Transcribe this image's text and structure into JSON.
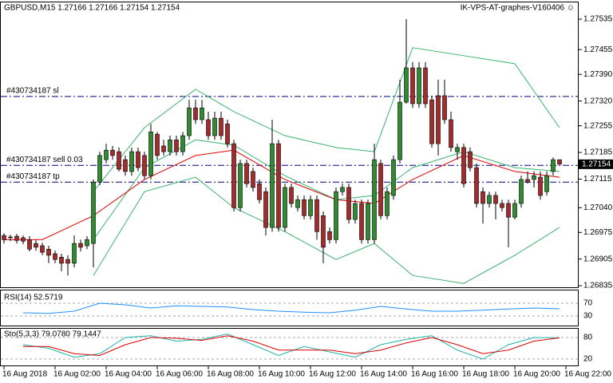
{
  "header": {
    "left": "GBPUSD,M15  1.27166 1.27166 1.27154 1.27154",
    "right": "IK-VPS-AT-graphes-V160406 ☺"
  },
  "chart_data": [
    {
      "type": "candlestick",
      "ylim": [
        1.26831,
        1.27579
      ],
      "yticks": [
        1.27535,
        1.27455,
        {
          "value": 1.2739,
          "label": "1.27390"
        },
        {
          "value": 1.2732,
          "label": "1.27320"
        },
        1.27255,
        1.27185,
        1.27115,
        {
          "value": 1.2704,
          "label": "1.27040"
        },
        1.26975,
        1.26905,
        1.26835
      ],
      "up_color": "#2e8b2e",
      "down_color": "#a52a2a",
      "ohlc": [
        [
          1.26967,
          1.26973,
          1.26946,
          1.26956
        ],
        [
          1.26963,
          1.26969,
          1.26952,
          1.26961
        ],
        [
          1.26965,
          1.26971,
          1.26946,
          1.26954
        ],
        [
          1.26961,
          1.26967,
          1.26944,
          1.26952
        ],
        [
          1.26956,
          1.26965,
          1.26925,
          1.26931
        ],
        [
          1.26946,
          1.26956,
          1.26927,
          1.26936
        ],
        [
          1.2694,
          1.26948,
          1.26915,
          1.26923
        ],
        [
          1.26931,
          1.2694,
          1.26894,
          1.26915
        ],
        [
          1.26919,
          1.26927,
          1.26894,
          1.26904
        ],
        [
          1.2691,
          1.26919,
          1.26873,
          1.26894
        ],
        [
          1.26904,
          1.26915,
          1.26862,
          1.26894
        ],
        [
          1.26894,
          1.26967,
          1.26883,
          1.26946
        ],
        [
          1.26946,
          1.26956,
          1.26925,
          1.26936
        ],
        [
          1.2694,
          1.26965,
          1.26931,
          1.26956
        ],
        [
          1.26946,
          1.27114,
          1.26883,
          1.27107
        ],
        [
          1.27107,
          1.27187,
          1.27099,
          1.27177
        ],
        [
          1.27166,
          1.27208,
          1.27156,
          1.27191
        ],
        [
          1.27191,
          1.27202,
          1.27166,
          1.27177
        ],
        [
          1.27187,
          1.27198,
          1.27135,
          1.27141
        ],
        [
          1.27166,
          1.27177,
          1.27124,
          1.27135
        ],
        [
          1.27135,
          1.27198,
          1.27124,
          1.27187
        ],
        [
          1.27187,
          1.27198,
          1.27135,
          1.27145
        ],
        [
          1.27177,
          1.27187,
          1.27114,
          1.27124
        ],
        [
          1.27124,
          1.2726,
          1.27114,
          1.27239
        ],
        [
          1.27233,
          1.27239,
          1.27166,
          1.27177
        ],
        [
          1.27202,
          1.27218,
          1.27177,
          1.27187
        ],
        [
          1.27187,
          1.27229,
          1.27177,
          1.27218
        ],
        [
          1.27218,
          1.27229,
          1.27177,
          1.27187
        ],
        [
          1.27187,
          1.27239,
          1.27177,
          1.27229
        ],
        [
          1.27229,
          1.27323,
          1.27218,
          1.27302
        ],
        [
          1.27302,
          1.27323,
          1.2726,
          1.27271
        ],
        [
          1.27271,
          1.27323,
          1.2726,
          1.27302
        ],
        [
          1.27271,
          1.27292,
          1.27218,
          1.27229
        ],
        [
          1.27229,
          1.27292,
          1.27218,
          1.27275
        ],
        [
          1.27275,
          1.27292,
          1.27218,
          1.27229
        ],
        [
          1.2726,
          1.27271,
          1.27198,
          1.27208
        ],
        [
          1.27208,
          1.27218,
          1.2703,
          1.2704
        ],
        [
          1.2704,
          1.27166,
          1.2703,
          1.27156
        ],
        [
          1.27156,
          1.27166,
          1.27093,
          1.27103
        ],
        [
          1.27135,
          1.27145,
          1.27082,
          1.27093
        ],
        [
          1.27103,
          1.27114,
          1.27051,
          1.27061
        ],
        [
          1.27082,
          1.27093,
          1.26967,
          1.26988
        ],
        [
          1.26988,
          1.27271,
          1.26977,
          1.27208
        ],
        [
          1.27208,
          1.27218,
          1.26977,
          1.26988
        ],
        [
          1.26988,
          1.27103,
          1.26977,
          1.27093
        ],
        [
          1.27093,
          1.27103,
          1.2704,
          1.27051
        ],
        [
          1.2704,
          1.27072,
          1.2703,
          1.27061
        ],
        [
          1.27061,
          1.27072,
          1.27009,
          1.27019
        ],
        [
          1.27019,
          1.27072,
          1.27009,
          1.27061
        ],
        [
          1.27061,
          1.27072,
          1.26956,
          1.26977
        ],
        [
          1.27019,
          1.2703,
          1.26894,
          1.26936
        ],
        [
          1.26977,
          1.26988,
          1.26946,
          1.26956
        ],
        [
          1.26956,
          1.27093,
          1.26946,
          1.27082
        ],
        [
          1.27082,
          1.27103,
          1.27072,
          1.27093
        ],
        [
          1.27093,
          1.27103,
          1.26998,
          1.27009
        ],
        [
          1.27009,
          1.27061,
          1.26998,
          1.27051
        ],
        [
          1.27051,
          1.27061,
          1.26946,
          1.26956
        ],
        [
          1.26956,
          1.27061,
          1.26946,
          1.27051
        ],
        [
          1.26956,
          1.27208,
          1.26946,
          1.27166
        ],
        [
          1.27156,
          1.27166,
          1.27009,
          1.27019
        ],
        [
          1.27019,
          1.27093,
          1.27009,
          1.27082
        ],
        [
          1.27072,
          1.27177,
          1.27061,
          1.27166
        ],
        [
          1.27166,
          1.27376,
          1.27156,
          1.27317
        ],
        [
          1.27317,
          1.27535,
          1.27313,
          1.27407
        ],
        [
          1.27407,
          1.27422,
          1.27302,
          1.27313
        ],
        [
          1.27313,
          1.27422,
          1.27302,
          1.27407
        ],
        [
          1.27407,
          1.27422,
          1.27302,
          1.27313
        ],
        [
          1.27323,
          1.27334,
          1.27198,
          1.27208
        ],
        [
          1.27334,
          1.27376,
          1.27177,
          1.27208
        ],
        [
          1.27334,
          1.27376,
          1.2726,
          1.27271
        ],
        [
          1.27271,
          1.27292,
          1.27187,
          1.27198
        ],
        [
          1.27187,
          1.27208,
          1.27166,
          1.27198
        ],
        [
          1.27198,
          1.27208,
          1.27093,
          1.27103
        ],
        [
          1.27187,
          1.27198,
          1.27135,
          1.27145
        ],
        [
          1.27145,
          1.27156,
          1.2704,
          1.27051
        ],
        [
          1.27082,
          1.27093,
          1.26998,
          1.27051
        ],
        [
          1.27051,
          1.27082,
          1.2704,
          1.27072
        ],
        [
          1.27072,
          1.27082,
          1.27009,
          1.27051
        ],
        [
          1.27051,
          1.27061,
          1.2703,
          1.2704
        ],
        [
          1.27051,
          1.27061,
          1.26936,
          1.27015
        ],
        [
          1.27015,
          1.27061,
          1.27009,
          1.27051
        ],
        [
          1.27051,
          1.27124,
          1.2704,
          1.27114
        ],
        [
          1.27114,
          1.27135,
          1.27103,
          1.27107
        ],
        [
          1.27114,
          1.27135,
          1.27093,
          1.27124
        ],
        [
          1.2712,
          1.27135,
          1.27061,
          1.27072
        ],
        [
          1.27082,
          1.27135,
          1.27072,
          1.27124
        ],
        [
          1.27135,
          1.27172,
          1.27124,
          1.27166
        ],
        [
          1.27166,
          1.27166,
          1.27154,
          1.27154
        ]
      ],
      "bands": {
        "color": "#3cb371",
        "index": [
          14,
          22,
          30,
          36,
          44,
          52,
          58,
          64,
          72,
          80,
          87
        ],
        "upper": [
          1.27082,
          1.2725,
          1.27351,
          1.27292,
          1.27229,
          1.27198,
          1.27187,
          1.2746,
          1.27439,
          1.27418,
          1.2725
        ],
        "middle": [
          1.26956,
          1.27145,
          1.27218,
          1.27204,
          1.27124,
          1.27061,
          1.27072,
          1.27145,
          1.27187,
          1.27145,
          1.27135
        ],
        "lower": [
          1.26862,
          1.27082,
          1.2712,
          1.2704,
          1.26977,
          1.26904,
          1.26946,
          1.26862,
          1.26841,
          1.26915,
          1.26988
        ]
      },
      "ma": {
        "color": "#e00000",
        "index": [
          0,
          6,
          14,
          22,
          30,
          36,
          44,
          52,
          58,
          64,
          72,
          80,
          87
        ],
        "values": [
          1.26956,
          1.26956,
          1.27019,
          1.27114,
          1.27177,
          1.27191,
          1.27114,
          1.27061,
          1.27051,
          1.27114,
          1.27177,
          1.27135,
          1.2712
        ]
      },
      "level_color": "#000080",
      "levels": [
        {
          "label": "#430734187 sl",
          "value": 1.27332
        },
        {
          "label": "#430734187 sell 0.03",
          "value": 1.27151
        },
        {
          "label": "#430734187 tp",
          "value": 1.27107
        }
      ],
      "time_labels": [
        "16 Aug 2018",
        "16 Aug 02:00",
        "16 Aug 04:00",
        "16 Aug 06:00",
        "16 Aug 08:00",
        "16 Aug 10:00",
        "16 Aug 12:00",
        "16 Aug 14:00",
        "16 Aug 16:00",
        "16 Aug 18:00",
        "16 Aug 20:00",
        "16 Aug 22:00"
      ]
    },
    {
      "type": "line",
      "title": "RSI(14) 52.5719",
      "ylim": [
        0,
        100
      ],
      "yticks": [
        70,
        30
      ],
      "index": [
        3,
        7,
        11,
        15,
        19,
        23,
        27,
        31,
        35,
        39,
        43,
        47,
        51,
        55,
        59,
        63,
        67,
        71,
        75,
        79,
        83,
        87
      ],
      "series": [
        {
          "color": "#1e90ff",
          "values": [
            40,
            38,
            45,
            70,
            65,
            55,
            62,
            60,
            58,
            50,
            45,
            42,
            40,
            48,
            60,
            52,
            45,
            45,
            48,
            52,
            55,
            52.5719
          ]
        }
      ]
    },
    {
      "type": "line",
      "title": "Sto(5,3,3) 79.0780 79.1447",
      "ylim": [
        0,
        100
      ],
      "yticks": [
        80,
        20
      ],
      "index": [
        3,
        7,
        11,
        15,
        19,
        23,
        27,
        31,
        35,
        39,
        43,
        47,
        51,
        55,
        59,
        63,
        67,
        71,
        75,
        79,
        83,
        87
      ],
      "series": [
        {
          "color": "#20b2aa",
          "values": [
            60,
            50,
            25,
            35,
            80,
            85,
            70,
            75,
            90,
            60,
            30,
            55,
            40,
            25,
            60,
            75,
            85,
            45,
            20,
            60,
            80,
            79.078
          ]
        },
        {
          "color": "#e00000",
          "values": [
            55,
            55,
            35,
            30,
            60,
            80,
            78,
            72,
            85,
            70,
            45,
            45,
            45,
            35,
            45,
            65,
            80,
            60,
            35,
            45,
            70,
            79.1447
          ]
        }
      ]
    }
  ]
}
